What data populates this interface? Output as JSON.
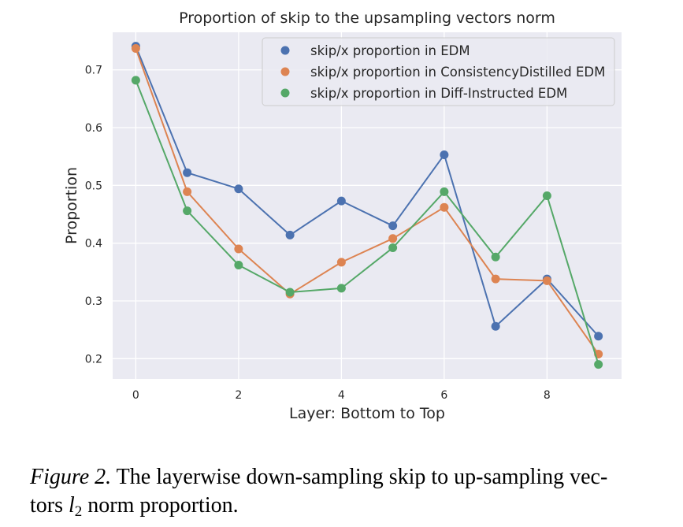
{
  "chart_data": {
    "type": "line",
    "title": "Proportion of skip to the upsampling vectors norm",
    "xlabel": "Layer: Bottom to Top",
    "ylabel": "Proportion",
    "x": [
      0,
      1,
      2,
      3,
      4,
      5,
      6,
      7,
      8,
      9
    ],
    "xlim": [
      -0.45,
      9.45
    ],
    "ylim": [
      0.165,
      0.765
    ],
    "xticks": [
      0,
      2,
      4,
      6,
      8
    ],
    "yticks": [
      0.2,
      0.3,
      0.4,
      0.5,
      0.6,
      0.7
    ],
    "ytick_labels": [
      "0.2",
      "0.3",
      "0.4",
      "0.5",
      "0.6",
      "0.7"
    ],
    "grid": true,
    "legend_position": "top-right",
    "series": [
      {
        "name": "skip/x proportion in EDM",
        "color": "#4c72b0",
        "values": [
          0.741,
          0.522,
          0.494,
          0.414,
          0.473,
          0.43,
          0.553,
          0.256,
          0.338,
          0.239
        ]
      },
      {
        "name": "skip/x proportion in ConsistencyDistilled EDM",
        "color": "#dd8452",
        "values": [
          0.737,
          0.489,
          0.39,
          0.312,
          0.367,
          0.408,
          0.462,
          0.338,
          0.335,
          0.208
        ]
      },
      {
        "name": "skip/x proportion in Diff-Instructed EDM",
        "color": "#55a868",
        "values": [
          0.682,
          0.456,
          0.362,
          0.315,
          0.322,
          0.392,
          0.489,
          0.376,
          0.482,
          0.19
        ]
      }
    ]
  },
  "caption": {
    "label": "Figure 2.",
    "text_before_math": " The layerwise down-sampling skip to up-sampling vec-",
    "line2_before_math": "tors ",
    "math_var": "l",
    "math_sub": "2",
    "text_after_math": " norm proportion."
  }
}
